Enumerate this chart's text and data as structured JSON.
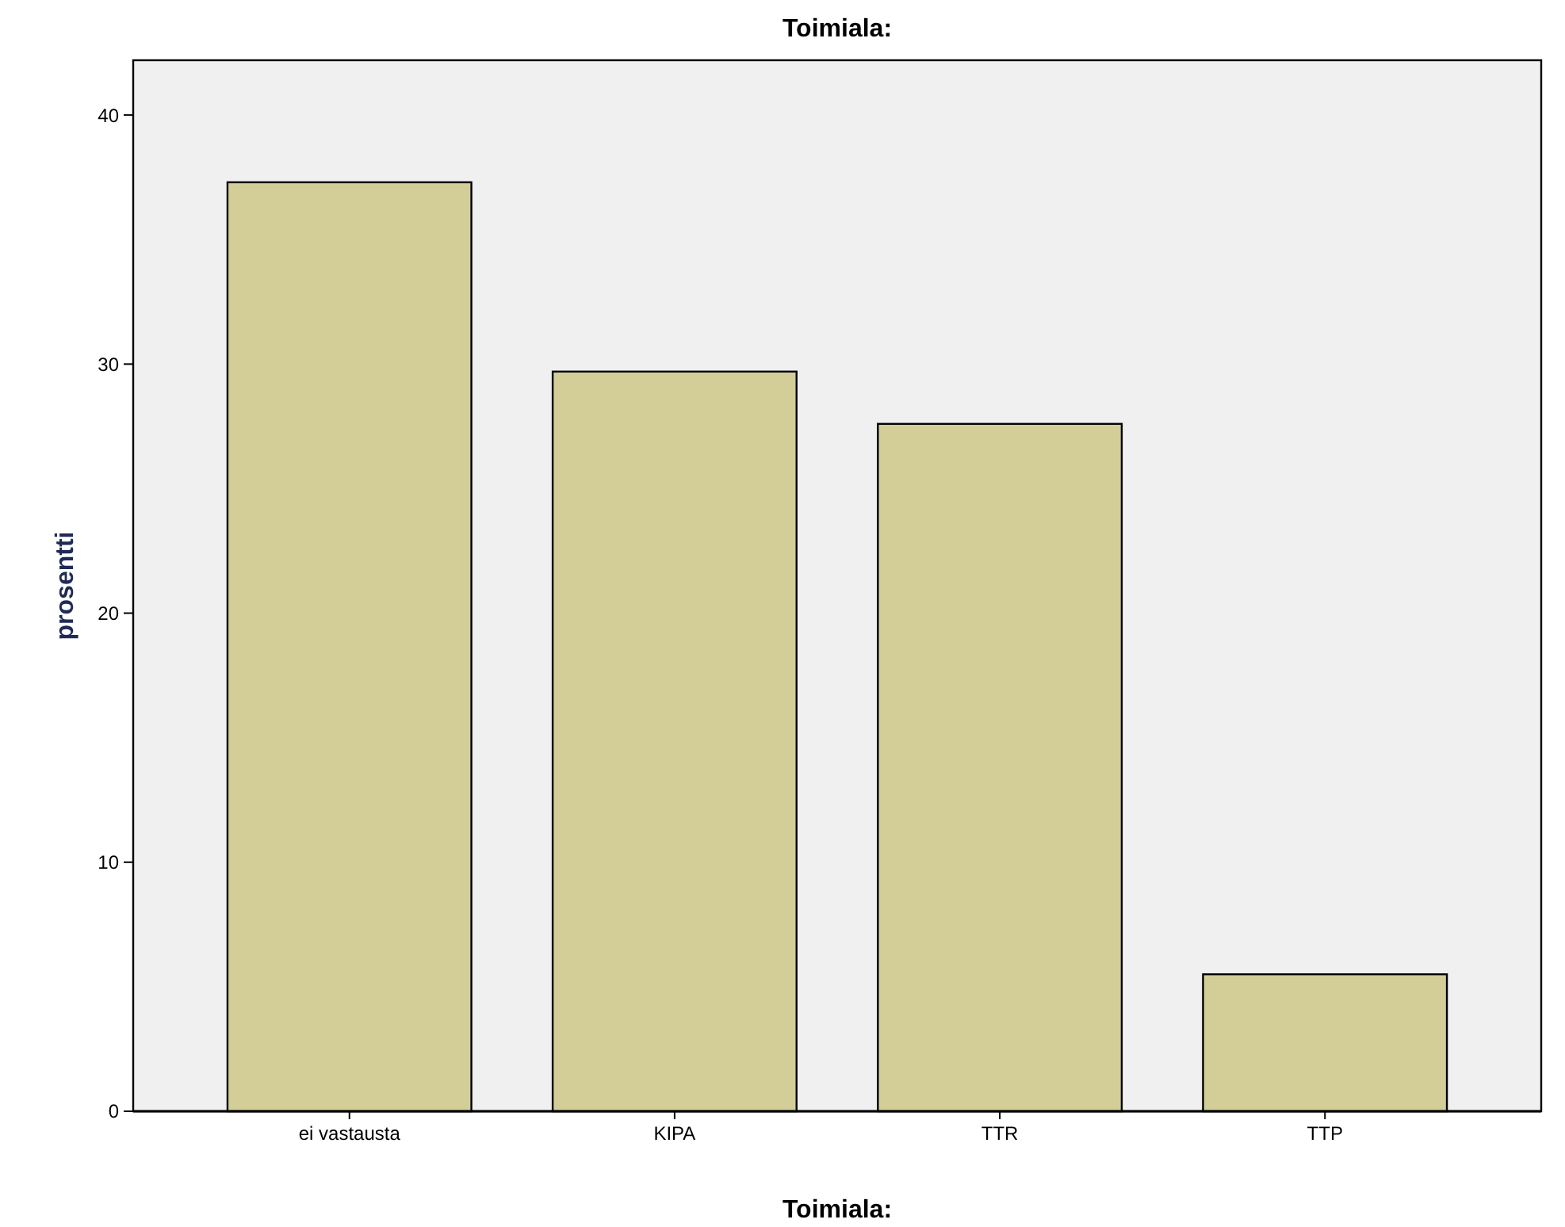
{
  "chart_data": {
    "type": "bar",
    "title": "Toimiala:",
    "xlabel": "Toimiala:",
    "ylabel": "prosentti",
    "categories": [
      "ei vastausta",
      "KIPA",
      "TTR",
      "TTP"
    ],
    "values": [
      37.3,
      29.7,
      27.6,
      5.5
    ],
    "color": "#d3ce97",
    "ylim": [
      0,
      42.2
    ],
    "yticks": [
      0,
      10,
      20,
      30,
      40
    ],
    "grid": false
  }
}
